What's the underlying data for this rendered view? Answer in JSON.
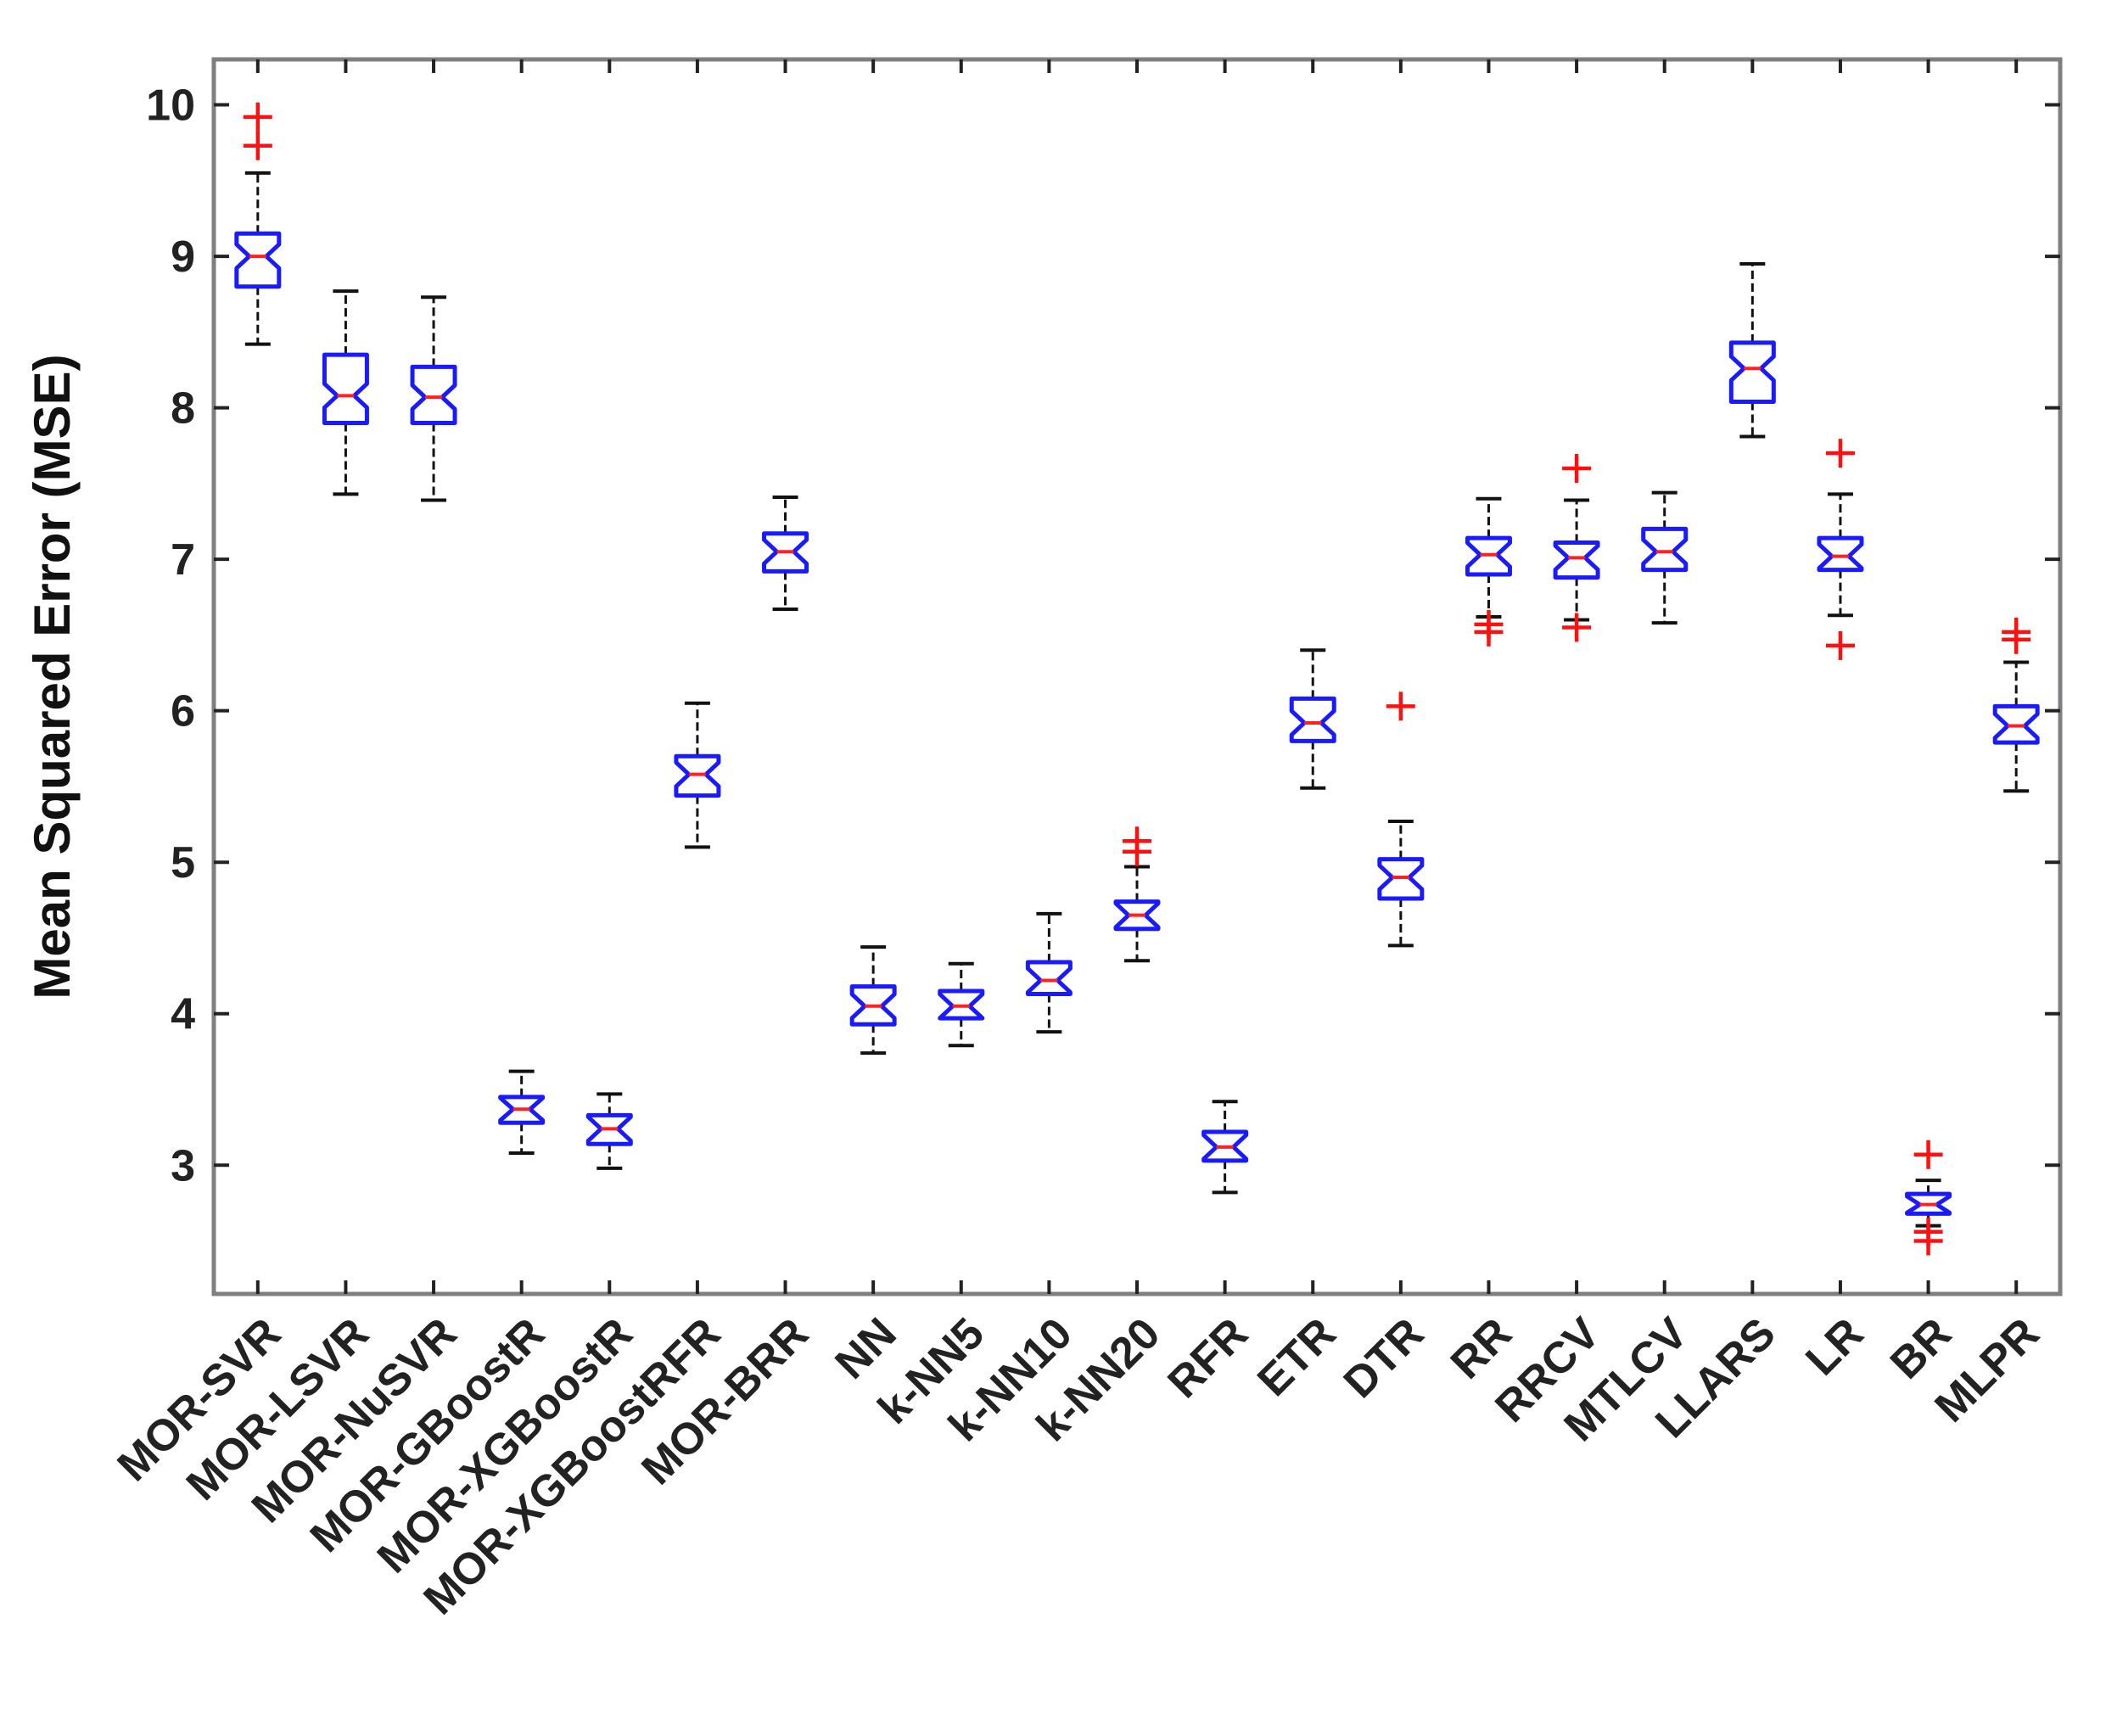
{
  "chart_data": {
    "type": "boxplot",
    "notched": true,
    "title": "",
    "xlabel": "",
    "ylabel": "Mean Squared Error (MSE)",
    "ylim": [
      2.15,
      10.3
    ],
    "yticks": [
      3,
      4,
      5,
      6,
      7,
      8,
      9,
      10
    ],
    "grid": false,
    "colors": {
      "box": "#1a1aff",
      "median": "#ff2020",
      "whisker": "#111111",
      "outlier": "#ff1010",
      "frame": "#7f7f7f"
    },
    "categories": [
      "MOR-SVR",
      "MOR-LSVR",
      "MOR-NuSVR",
      "MOR-GBoostR",
      "MOR-XGBoostR",
      "MOR-XGBoostRFR",
      "MOR-BRR",
      "NN",
      "k-NN5",
      "k-NN10",
      "k-NN20",
      "RFR",
      "ETR",
      "DTR",
      "RR",
      "RRCV",
      "MTLCV",
      "LLARS",
      "LR",
      "BR",
      "MLPR"
    ],
    "boxes": [
      {
        "name": "MOR-SVR",
        "whisker_low": 8.42,
        "q1": 8.8,
        "median": 9.0,
        "q3": 9.15,
        "whisker_high": 9.55,
        "outliers": [
          9.73,
          9.92
        ]
      },
      {
        "name": "MOR-LSVR",
        "whisker_low": 7.43,
        "q1": 7.9,
        "median": 8.08,
        "q3": 8.35,
        "whisker_high": 8.77,
        "outliers": []
      },
      {
        "name": "MOR-NuSVR",
        "whisker_low": 7.39,
        "q1": 7.9,
        "median": 8.07,
        "q3": 8.27,
        "whisker_high": 8.73,
        "outliers": []
      },
      {
        "name": "MOR-GBoostR",
        "whisker_low": 3.08,
        "q1": 3.28,
        "median": 3.37,
        "q3": 3.45,
        "whisker_high": 3.62,
        "outliers": []
      },
      {
        "name": "MOR-XGBoostR",
        "whisker_low": 2.98,
        "q1": 3.14,
        "median": 3.24,
        "q3": 3.33,
        "whisker_high": 3.47,
        "outliers": []
      },
      {
        "name": "MOR-XGBoostRFR",
        "whisker_low": 5.1,
        "q1": 5.44,
        "median": 5.58,
        "q3": 5.7,
        "whisker_high": 6.05,
        "outliers": []
      },
      {
        "name": "MOR-BRR",
        "whisker_low": 6.67,
        "q1": 6.92,
        "median": 7.05,
        "q3": 7.17,
        "whisker_high": 7.41,
        "outliers": []
      },
      {
        "name": "NN",
        "whisker_low": 3.74,
        "q1": 3.93,
        "median": 4.05,
        "q3": 4.18,
        "whisker_high": 4.44,
        "outliers": []
      },
      {
        "name": "k-NN5",
        "whisker_low": 3.79,
        "q1": 3.97,
        "median": 4.05,
        "q3": 4.15,
        "whisker_high": 4.33,
        "outliers": []
      },
      {
        "name": "k-NN10",
        "whisker_low": 3.88,
        "q1": 4.13,
        "median": 4.22,
        "q3": 4.34,
        "whisker_high": 4.66,
        "outliers": []
      },
      {
        "name": "k-NN20",
        "whisker_low": 4.35,
        "q1": 4.56,
        "median": 4.65,
        "q3": 4.74,
        "whisker_high": 4.97,
        "outliers": [
          5.07,
          5.14
        ]
      },
      {
        "name": "RFR",
        "whisker_low": 2.82,
        "q1": 3.03,
        "median": 3.12,
        "q3": 3.22,
        "whisker_high": 3.42,
        "outliers": []
      },
      {
        "name": "ETR",
        "whisker_low": 5.49,
        "q1": 5.8,
        "median": 5.92,
        "q3": 6.08,
        "whisker_high": 6.4,
        "outliers": []
      },
      {
        "name": "DTR",
        "whisker_low": 4.45,
        "q1": 4.76,
        "median": 4.9,
        "q3": 5.02,
        "whisker_high": 5.27,
        "outliers": [
          6.03
        ]
      },
      {
        "name": "RR",
        "whisker_low": 6.62,
        "q1": 6.9,
        "median": 7.03,
        "q3": 7.14,
        "whisker_high": 7.4,
        "outliers": [
          6.52,
          6.57
        ]
      },
      {
        "name": "RRCV",
        "whisker_low": 6.6,
        "q1": 6.88,
        "median": 7.01,
        "q3": 7.11,
        "whisker_high": 7.39,
        "outliers": [
          6.55,
          7.6
        ]
      },
      {
        "name": "MTLCV",
        "whisker_low": 6.58,
        "q1": 6.93,
        "median": 7.05,
        "q3": 7.2,
        "whisker_high": 7.44,
        "outliers": []
      },
      {
        "name": "LLARS",
        "whisker_low": 7.81,
        "q1": 8.04,
        "median": 8.26,
        "q3": 8.43,
        "whisker_high": 8.95,
        "outliers": []
      },
      {
        "name": "LR",
        "whisker_low": 6.63,
        "q1": 6.93,
        "median": 7.02,
        "q3": 7.14,
        "whisker_high": 7.43,
        "outliers": [
          6.43,
          7.7
        ]
      },
      {
        "name": "BR",
        "whisker_low": 2.6,
        "q1": 2.68,
        "median": 2.74,
        "q3": 2.81,
        "whisker_high": 2.9,
        "outliers": [
          2.5,
          2.56,
          3.07
        ]
      },
      {
        "name": "MLPR",
        "whisker_low": 5.47,
        "q1": 5.79,
        "median": 5.9,
        "q3": 6.03,
        "whisker_high": 6.32,
        "outliers": [
          6.47,
          6.52
        ]
      }
    ]
  }
}
